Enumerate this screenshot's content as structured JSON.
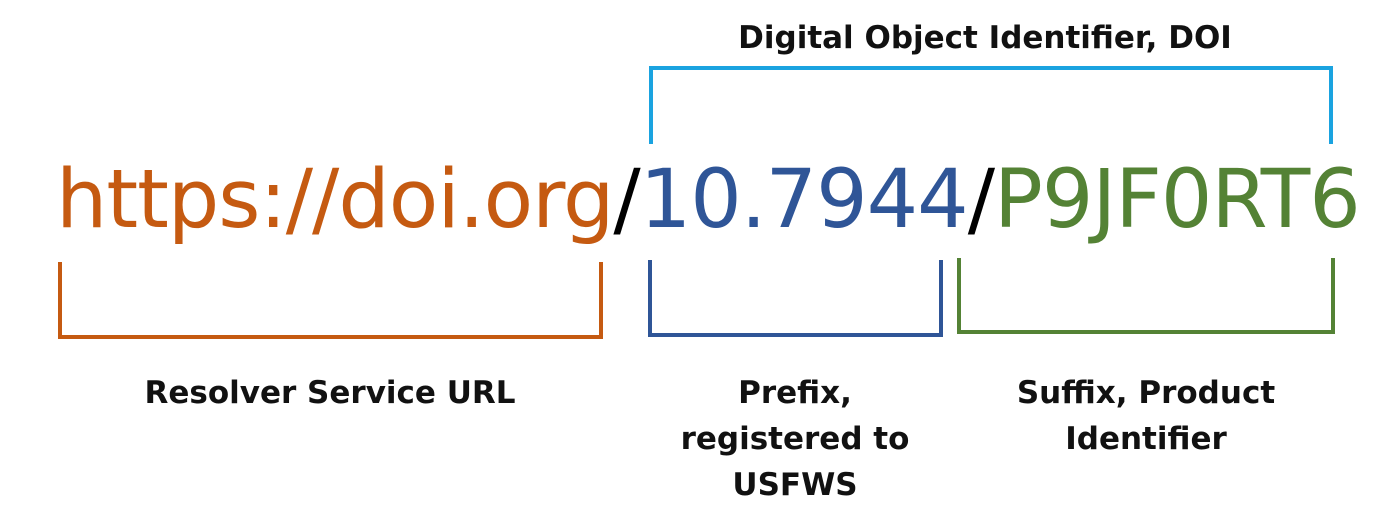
{
  "doi_label": "Digital Object Identifier, DOI",
  "url": {
    "resolver": "https://doi.org",
    "separator_1": "/",
    "prefix": "10.7944",
    "separator_2": "/",
    "suffix": "P9JF0RT6"
  },
  "labels": {
    "resolver": "Resolver Service URL",
    "prefix_lines": [
      "Prefix,",
      "registered to",
      "USFWS"
    ],
    "suffix_lines": [
      "Suffix, Product",
      "Identifier"
    ]
  },
  "colors": {
    "resolver": "#C55A11",
    "prefix": "#2F5597",
    "suffix": "#548235",
    "doi_bracket": "#1AA3E0",
    "separator": "#000000"
  }
}
